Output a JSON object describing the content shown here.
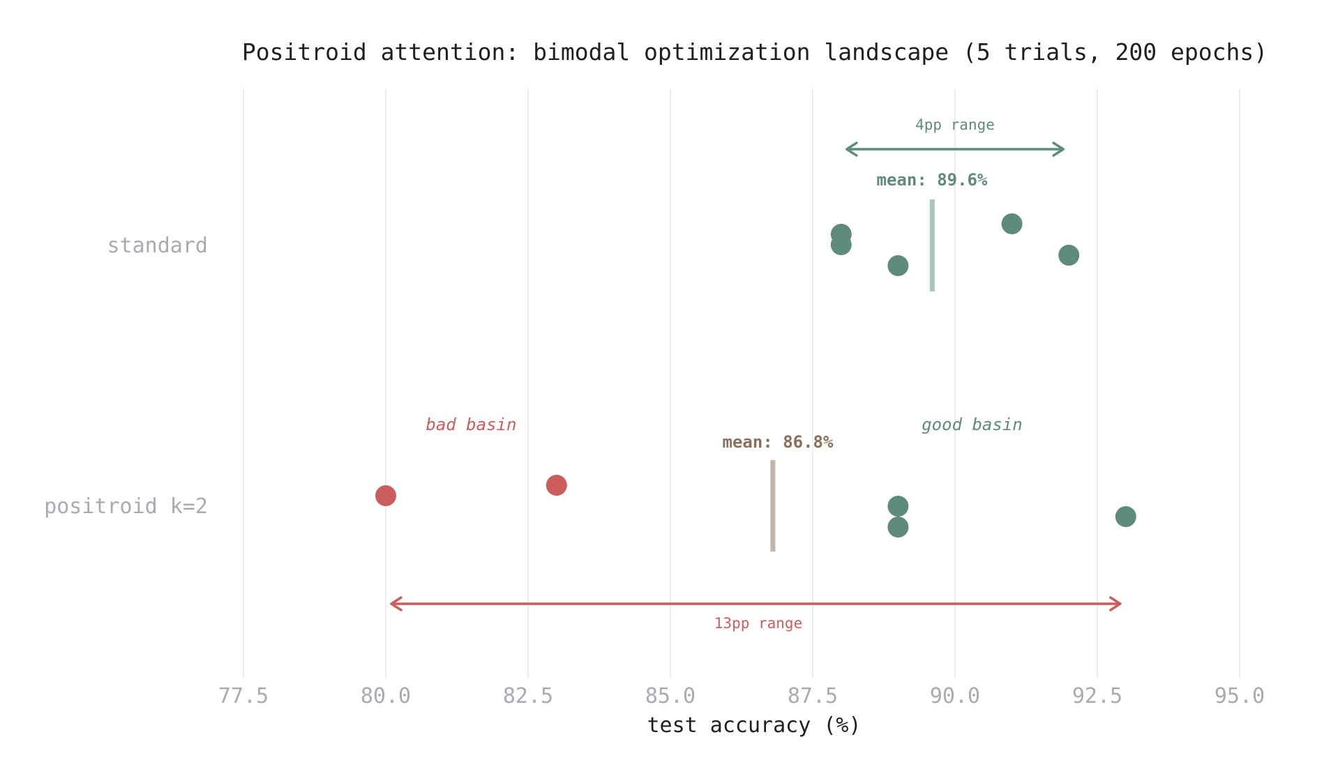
{
  "chart_data": {
    "type": "scatter",
    "title": "Positroid attention: bimodal optimization landscape (5 trials, 200 epochs)",
    "xlabel": "test accuracy (%)",
    "ylabel": "",
    "xlim": [
      77.5,
      95.0
    ],
    "xticks": [
      "77.5",
      "80.0",
      "82.5",
      "85.0",
      "87.5",
      "90.0",
      "92.5",
      "95.0"
    ],
    "grid": "vertical",
    "categories": [
      "standard",
      "positroid k=2"
    ],
    "series": [
      {
        "name": "standard",
        "values": [
          88.0,
          88.0,
          89.0,
          91.0,
          92.0
        ],
        "jitter": [
          -16,
          -1,
          29,
          -31,
          14
        ],
        "basin": [
          "good",
          "good",
          "good",
          "good",
          "good"
        ],
        "mean": 89.6,
        "mean_label": "mean: 89.6%",
        "range_label": "4pp range",
        "range": [
          88.0,
          92.0
        ]
      },
      {
        "name": "positroid k=2",
        "values": [
          80.0,
          83.0,
          89.0,
          89.0,
          93.0
        ],
        "jitter": [
          -15,
          -30,
          0,
          30,
          15
        ],
        "basin": [
          "bad",
          "bad",
          "good",
          "good",
          "good"
        ],
        "mean": 86.8,
        "mean_label": "mean: 86.8%",
        "range_label": "13pp range",
        "range": [
          80.0,
          93.0
        ]
      }
    ],
    "annotations": [
      {
        "text": "bad basin",
        "x": 81.5,
        "row": "positroid k=2",
        "color": "#cd5c5c"
      },
      {
        "text": "good basin",
        "x": 90.3,
        "row": "positroid k=2",
        "color": "#5e8b7a"
      }
    ]
  },
  "colors": {
    "good": "#5e8b7a",
    "bad": "#cd5c5c",
    "mean_bar_standard": "#adc5bb",
    "mean_bar_positroid": "#c4b5aa",
    "mean_label_positroid": "#8b6f5a",
    "grid": "#ededed"
  }
}
